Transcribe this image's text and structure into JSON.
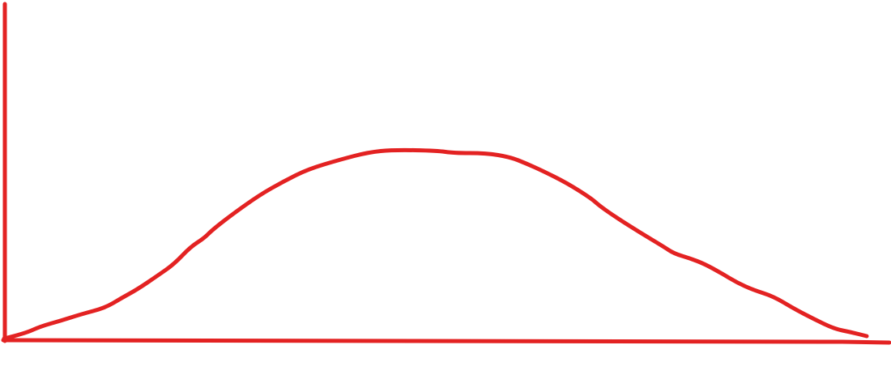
{
  "diagram": {
    "shape": "bell-curve",
    "stroke_color": "#e32222",
    "background_color": "#ffffff"
  }
}
